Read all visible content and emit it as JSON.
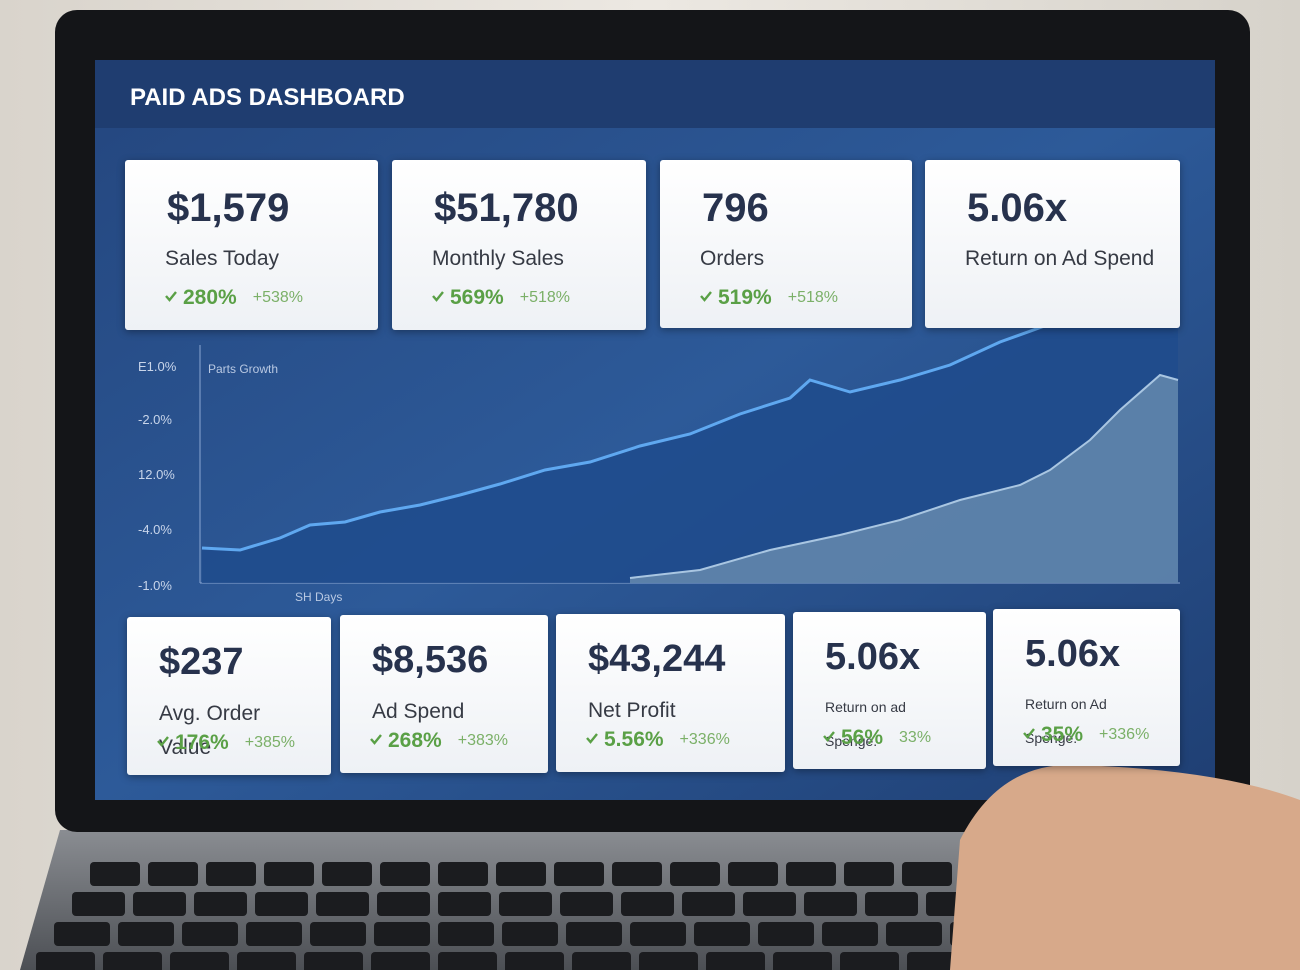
{
  "header": {
    "title": "PAID ADS DASHBOARD"
  },
  "top_cards": [
    {
      "value": "$1,579",
      "label": "Sales Today",
      "change": "280%",
      "secondary": "+538%"
    },
    {
      "value": "$51,780",
      "label": "Monthly Sales",
      "change": "569%",
      "secondary": "+518%"
    },
    {
      "value": "796",
      "label": "Orders",
      "change": "519%",
      "secondary": "+518%"
    },
    {
      "value": "5.06x",
      "label": "Return on Ad Spend"
    }
  ],
  "chart": {
    "title": "Parts Growth",
    "y_labels": [
      "E1.0%",
      "-2.0%",
      "12.0%",
      "-4.0%",
      "-1.0%"
    ],
    "x_label": "SH Days"
  },
  "bottom_cards": [
    {
      "value": "$237",
      "label": "Avg. Order Value",
      "change": "176%",
      "secondary": "+385%"
    },
    {
      "value": "$8,536",
      "label": "Ad Spend",
      "change": "268%",
      "secondary": "+383%"
    },
    {
      "value": "$43,244",
      "label": "Net Profit",
      "change": "5.56%",
      "secondary": "+336%"
    },
    {
      "value": "5.06x",
      "label": "Return on ad Spenge.",
      "change": "56%",
      "secondary": "33%"
    },
    {
      "value": "5.06x",
      "label": "Return on Ad Spenge.",
      "change": "35%",
      "secondary": "+336%"
    }
  ]
}
